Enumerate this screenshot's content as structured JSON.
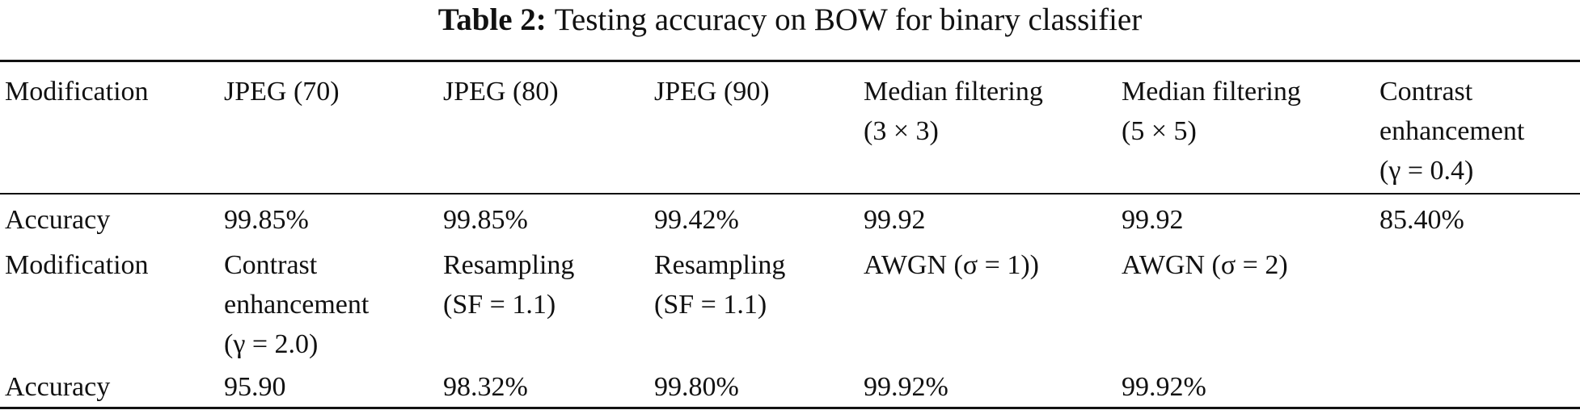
{
  "caption": {
    "label": "Table 2:",
    "text": "Testing accuracy on BOW for binary classifier"
  },
  "table": {
    "rows": [
      [
        "Modification",
        "JPEG (70)",
        "JPEG (80)",
        "JPEG (90)",
        "Median filtering\n(3 × 3)",
        "Median filtering\n(5 × 5)",
        "Contrast\nenhancement\n(γ = 0.4)"
      ],
      [
        "Accuracy",
        "99.85%",
        "99.85%",
        "99.42%",
        "99.92",
        "99.92",
        "85.40%"
      ],
      [
        "Modification",
        "Contrast\nenhancement\n(γ = 2.0)",
        "Resampling\n(SF = 1.1)",
        "Resampling\n(SF = 1.1)",
        "AWGN (σ = 1))",
        "AWGN (σ = 2)",
        ""
      ],
      [
        "Accuracy",
        "95.90",
        "98.32%",
        "99.80%",
        "99.92%",
        "99.92%",
        ""
      ]
    ]
  }
}
